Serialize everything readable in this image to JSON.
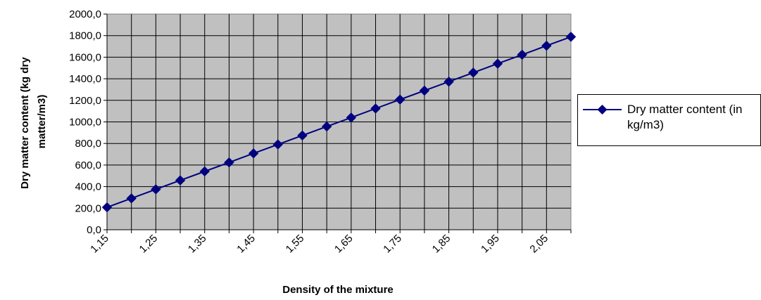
{
  "chart_data": {
    "type": "line",
    "title": "",
    "xlabel": "Density of the mixture",
    "ylabel": "Dry matter content (kg dry matter/m3)",
    "x": [
      "1,15",
      "1,20",
      "1,25",
      "1,30",
      "1,35",
      "1,40",
      "1,45",
      "1,50",
      "1,55",
      "1,60",
      "1,65",
      "1,70",
      "1,75",
      "1,80",
      "1,85",
      "1,90",
      "1,95",
      "2,00",
      "2,05",
      "2,10"
    ],
    "x_tick_labels": [
      "1,15",
      "1,25",
      "1,35",
      "1,45",
      "1,55",
      "1,65",
      "1,75",
      "1,85",
      "1,95",
      "2,05"
    ],
    "y_tick_labels": [
      "0,0",
      "200,0",
      "400,0",
      "600,0",
      "800,0",
      "1000,0",
      "1200,0",
      "1400,0",
      "1600,0",
      "1800,0",
      "2000,0"
    ],
    "ylim": [
      0,
      2000
    ],
    "grid": true,
    "legend_position": "right",
    "series": [
      {
        "name": "Dry matter content (in kg/m3)",
        "color": "#000080",
        "marker": "diamond",
        "values": [
          208,
          291,
          375,
          458,
          541,
          624,
          708,
          791,
          874,
          957,
          1040,
          1124,
          1207,
          1290,
          1373,
          1457,
          1540,
          1623,
          1706,
          1789
        ]
      }
    ],
    "colors": {
      "plot_background": "#c0c0c0",
      "grid": "#000000",
      "series": "#000080"
    }
  }
}
